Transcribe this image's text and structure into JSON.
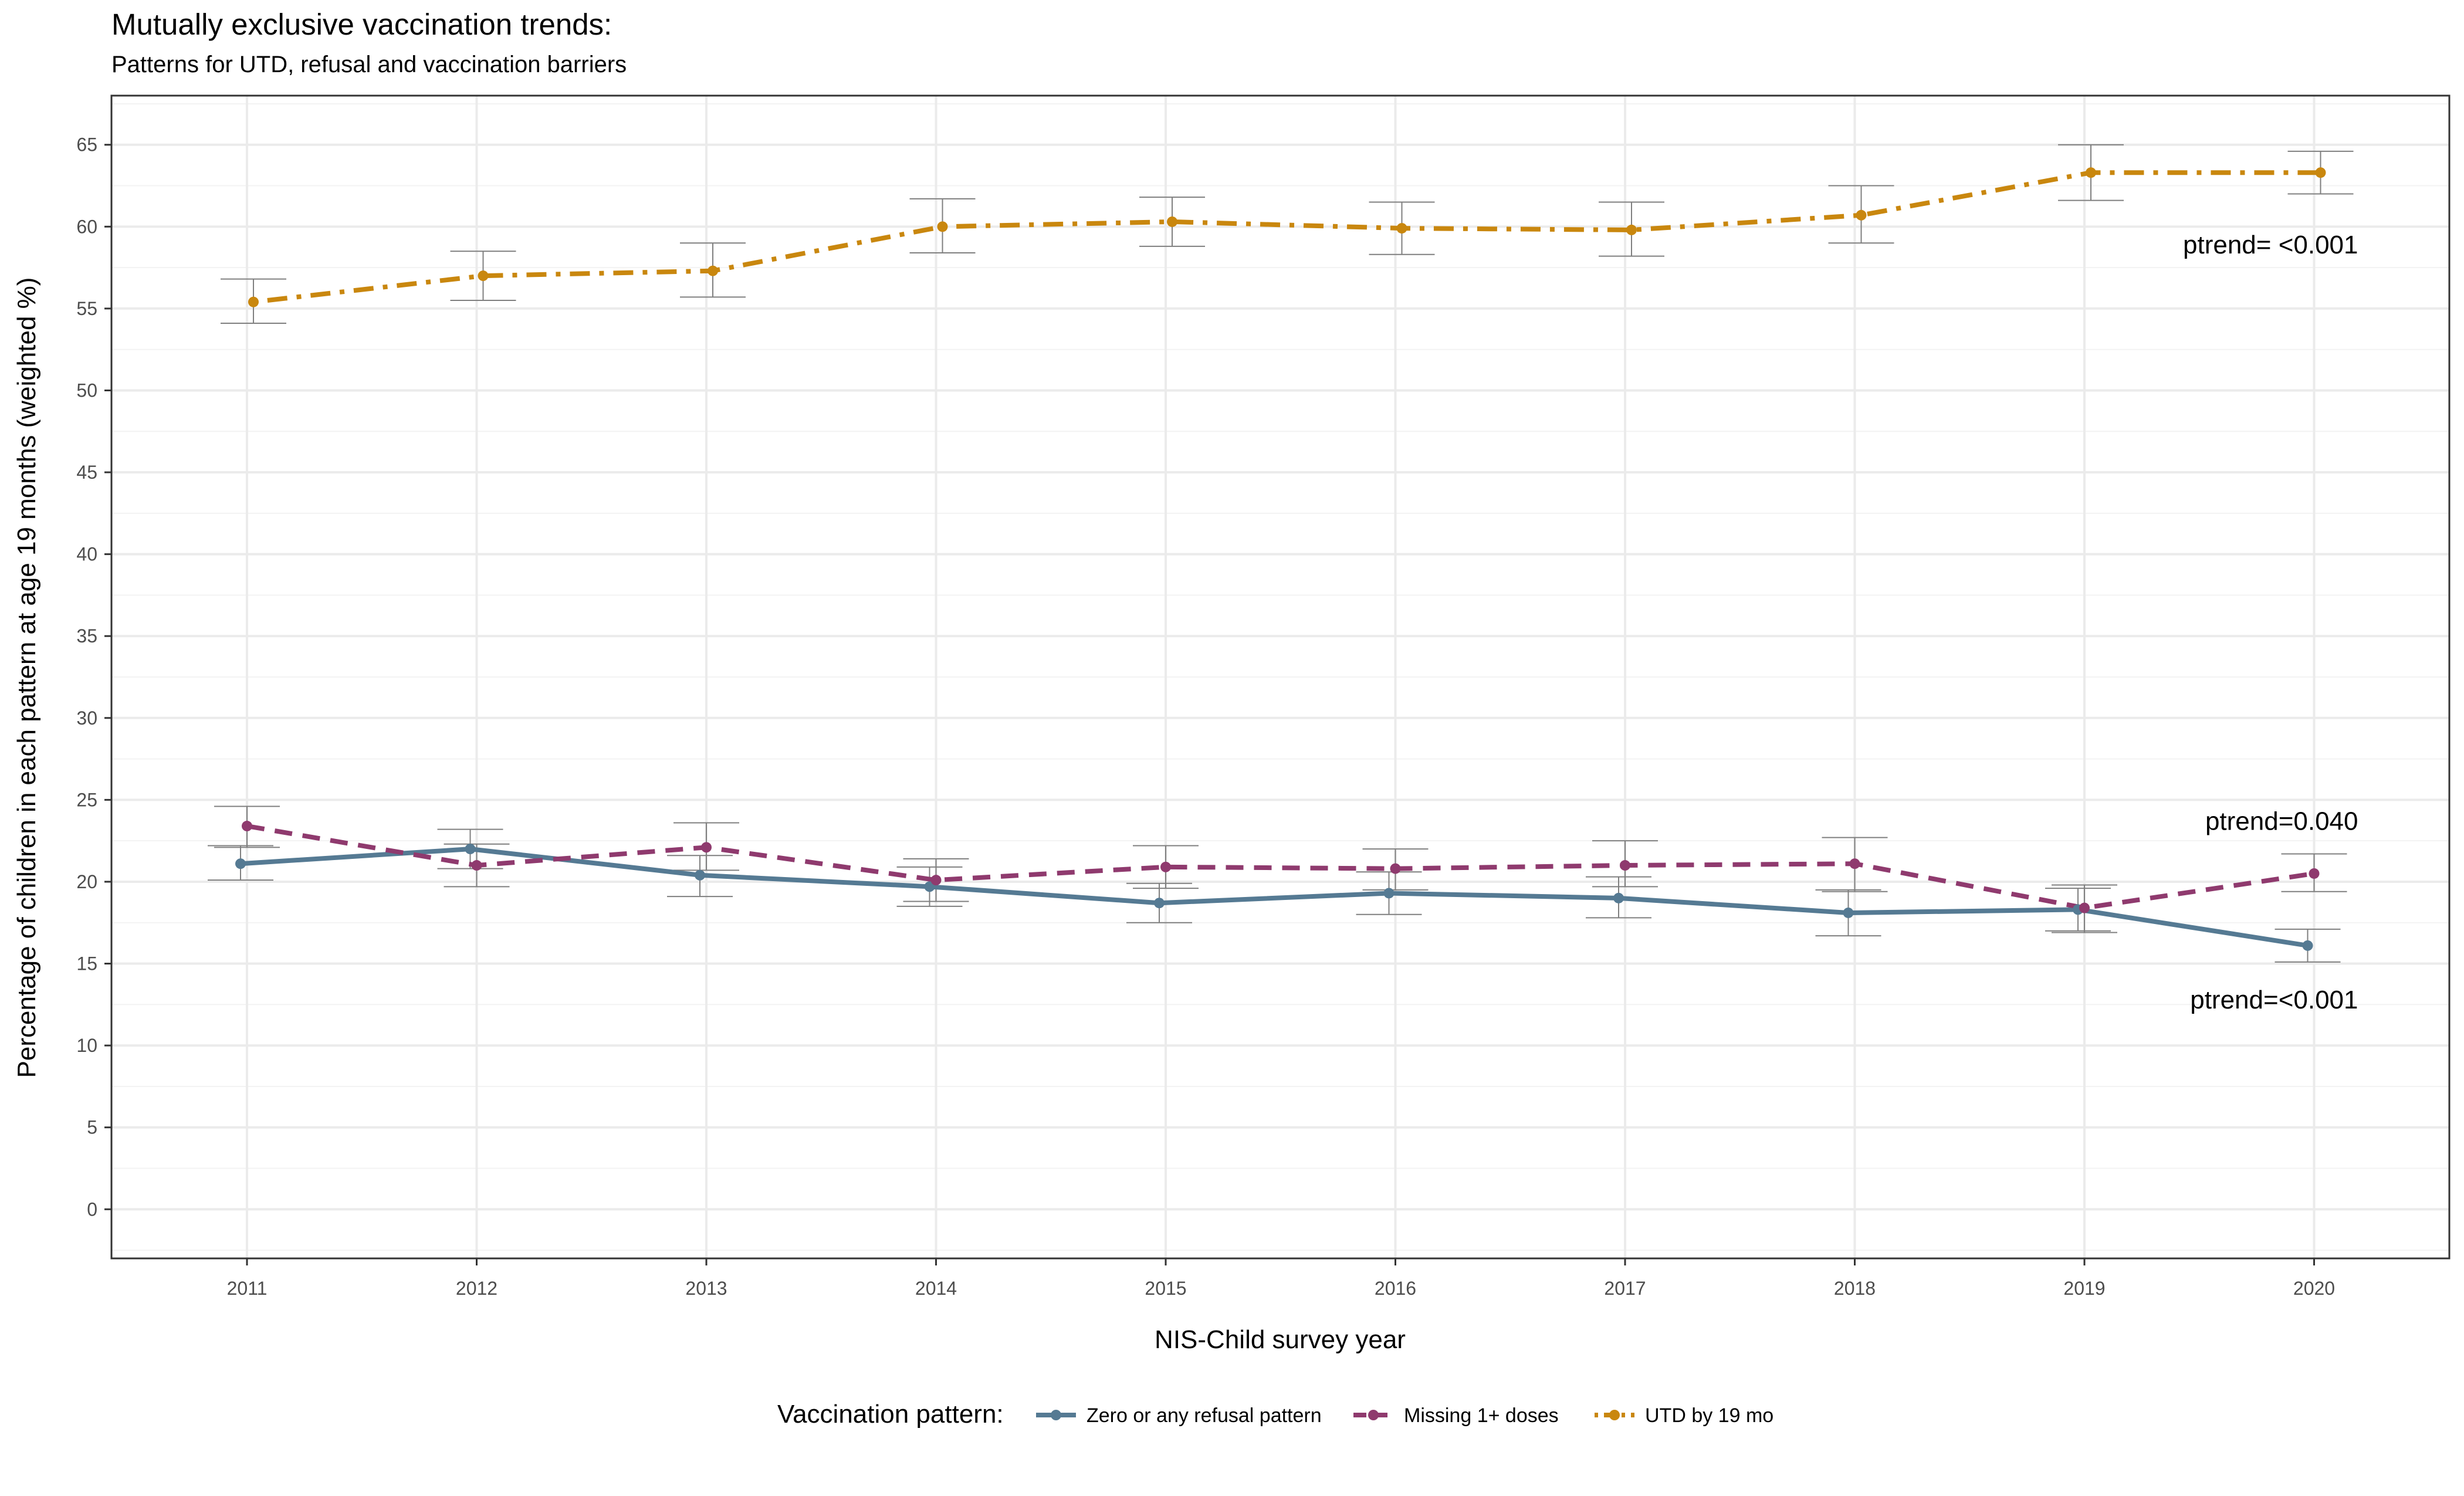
{
  "chart_data": {
    "type": "line",
    "title": "Mutually exclusive vaccination trends:",
    "subtitle": "Patterns for UTD, refusal and vaccination barriers",
    "xlabel": "NIS-Child survey year",
    "ylabel": "Percentage of children in each pattern at age 19 months (weighted %)",
    "x": [
      2011,
      2012,
      2013,
      2014,
      2015,
      2016,
      2017,
      2018,
      2019,
      2020
    ],
    "ylim": [
      -3,
      68
    ],
    "yticks": [
      0,
      5,
      10,
      15,
      20,
      25,
      30,
      35,
      40,
      45,
      50,
      55,
      60,
      65
    ],
    "grid": true,
    "legend": {
      "title": "Vaccination pattern:",
      "position": "bottom"
    },
    "series": [
      {
        "name": "Zero or any refusal pattern",
        "color": "#557a93",
        "linestyle": "solid",
        "values": [
          21.1,
          22.0,
          20.4,
          19.7,
          18.7,
          19.3,
          19.0,
          18.1,
          18.3,
          16.1
        ],
        "ci_lower": [
          20.1,
          20.8,
          19.1,
          18.5,
          17.5,
          18.0,
          17.8,
          16.7,
          17.0,
          15.1
        ],
        "ci_upper": [
          22.2,
          23.2,
          21.6,
          20.9,
          19.9,
          20.6,
          20.3,
          19.5,
          19.6,
          17.1
        ]
      },
      {
        "name": "Missing 1+ doses",
        "color": "#8f3a6e",
        "linestyle": "dashed",
        "values": [
          23.4,
          21.0,
          22.1,
          20.1,
          20.9,
          20.8,
          21.0,
          21.1,
          18.4,
          20.5
        ],
        "ci_lower": [
          22.1,
          19.7,
          20.7,
          18.8,
          19.6,
          19.5,
          19.7,
          19.4,
          16.9,
          19.4
        ],
        "ci_upper": [
          24.6,
          22.3,
          23.6,
          21.4,
          22.2,
          22.0,
          22.5,
          22.7,
          19.8,
          21.7
        ]
      },
      {
        "name": "UTD by 19 mo",
        "color": "#c9870e",
        "linestyle": "dotdash",
        "values": [
          55.4,
          57.0,
          57.3,
          60.0,
          60.3,
          59.9,
          59.8,
          60.7,
          63.3,
          63.3
        ],
        "ci_lower": [
          54.1,
          55.5,
          55.7,
          58.4,
          58.8,
          58.3,
          58.2,
          59.0,
          61.6,
          62.0
        ],
        "ci_upper": [
          56.8,
          58.5,
          59.0,
          61.7,
          61.8,
          61.5,
          61.5,
          62.5,
          65.0,
          64.6
        ]
      }
    ],
    "annotations": [
      {
        "text": "ptrend= <0.001",
        "x": 2020,
        "y": 58.9,
        "series": "UTD by 19 mo"
      },
      {
        "text": "ptrend=0.040",
        "x": 2020,
        "y": 23.7,
        "series": "Missing 1+ doses"
      },
      {
        "text": "ptrend=<0.001",
        "x": 2020,
        "y": 12.8,
        "series": "Zero or any refusal pattern"
      }
    ]
  }
}
